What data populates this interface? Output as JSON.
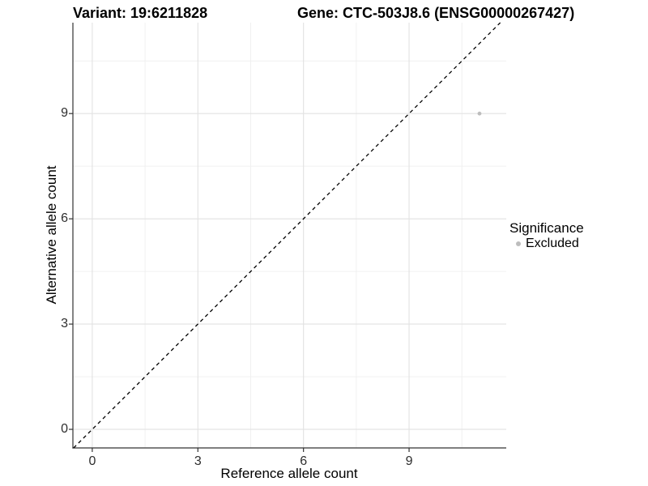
{
  "chart_data": {
    "type": "scatter",
    "titles": {
      "left": "Variant: 19:6211828",
      "right": "Gene: CTC-503J8.6 (ENSG00000267427)"
    },
    "xlabel": "Reference allele count",
    "ylabel": "Alternative allele count",
    "xlim": [
      -0.55,
      11.76
    ],
    "ylim": [
      -0.53,
      11.59
    ],
    "x_major_ticks": [
      0,
      3,
      6,
      9
    ],
    "y_major_ticks": [
      0,
      3,
      6,
      9
    ],
    "x_minor_gridlines": [
      1.5,
      4.5,
      7.5,
      10.5
    ],
    "y_minor_gridlines": [
      1.5,
      4.5,
      7.5,
      10.5
    ],
    "grid": true,
    "reference_line": {
      "equation": "y = x",
      "style": "dashed",
      "color": "#000000"
    },
    "series": [
      {
        "name": "Excluded",
        "color": "#bdbdbd",
        "marker": "circle",
        "points": [
          {
            "x": 11,
            "y": 9
          }
        ]
      }
    ],
    "legend": {
      "title": "Significance",
      "position": "right",
      "items": [
        {
          "label": "Excluded",
          "color": "#bdbdbd"
        }
      ]
    },
    "colors": {
      "axis_line": "#333333",
      "tick_mark": "#333333",
      "grid_major": "#e2e2e2",
      "grid_minor": "#f0f0f0",
      "background": "#ffffff"
    }
  }
}
